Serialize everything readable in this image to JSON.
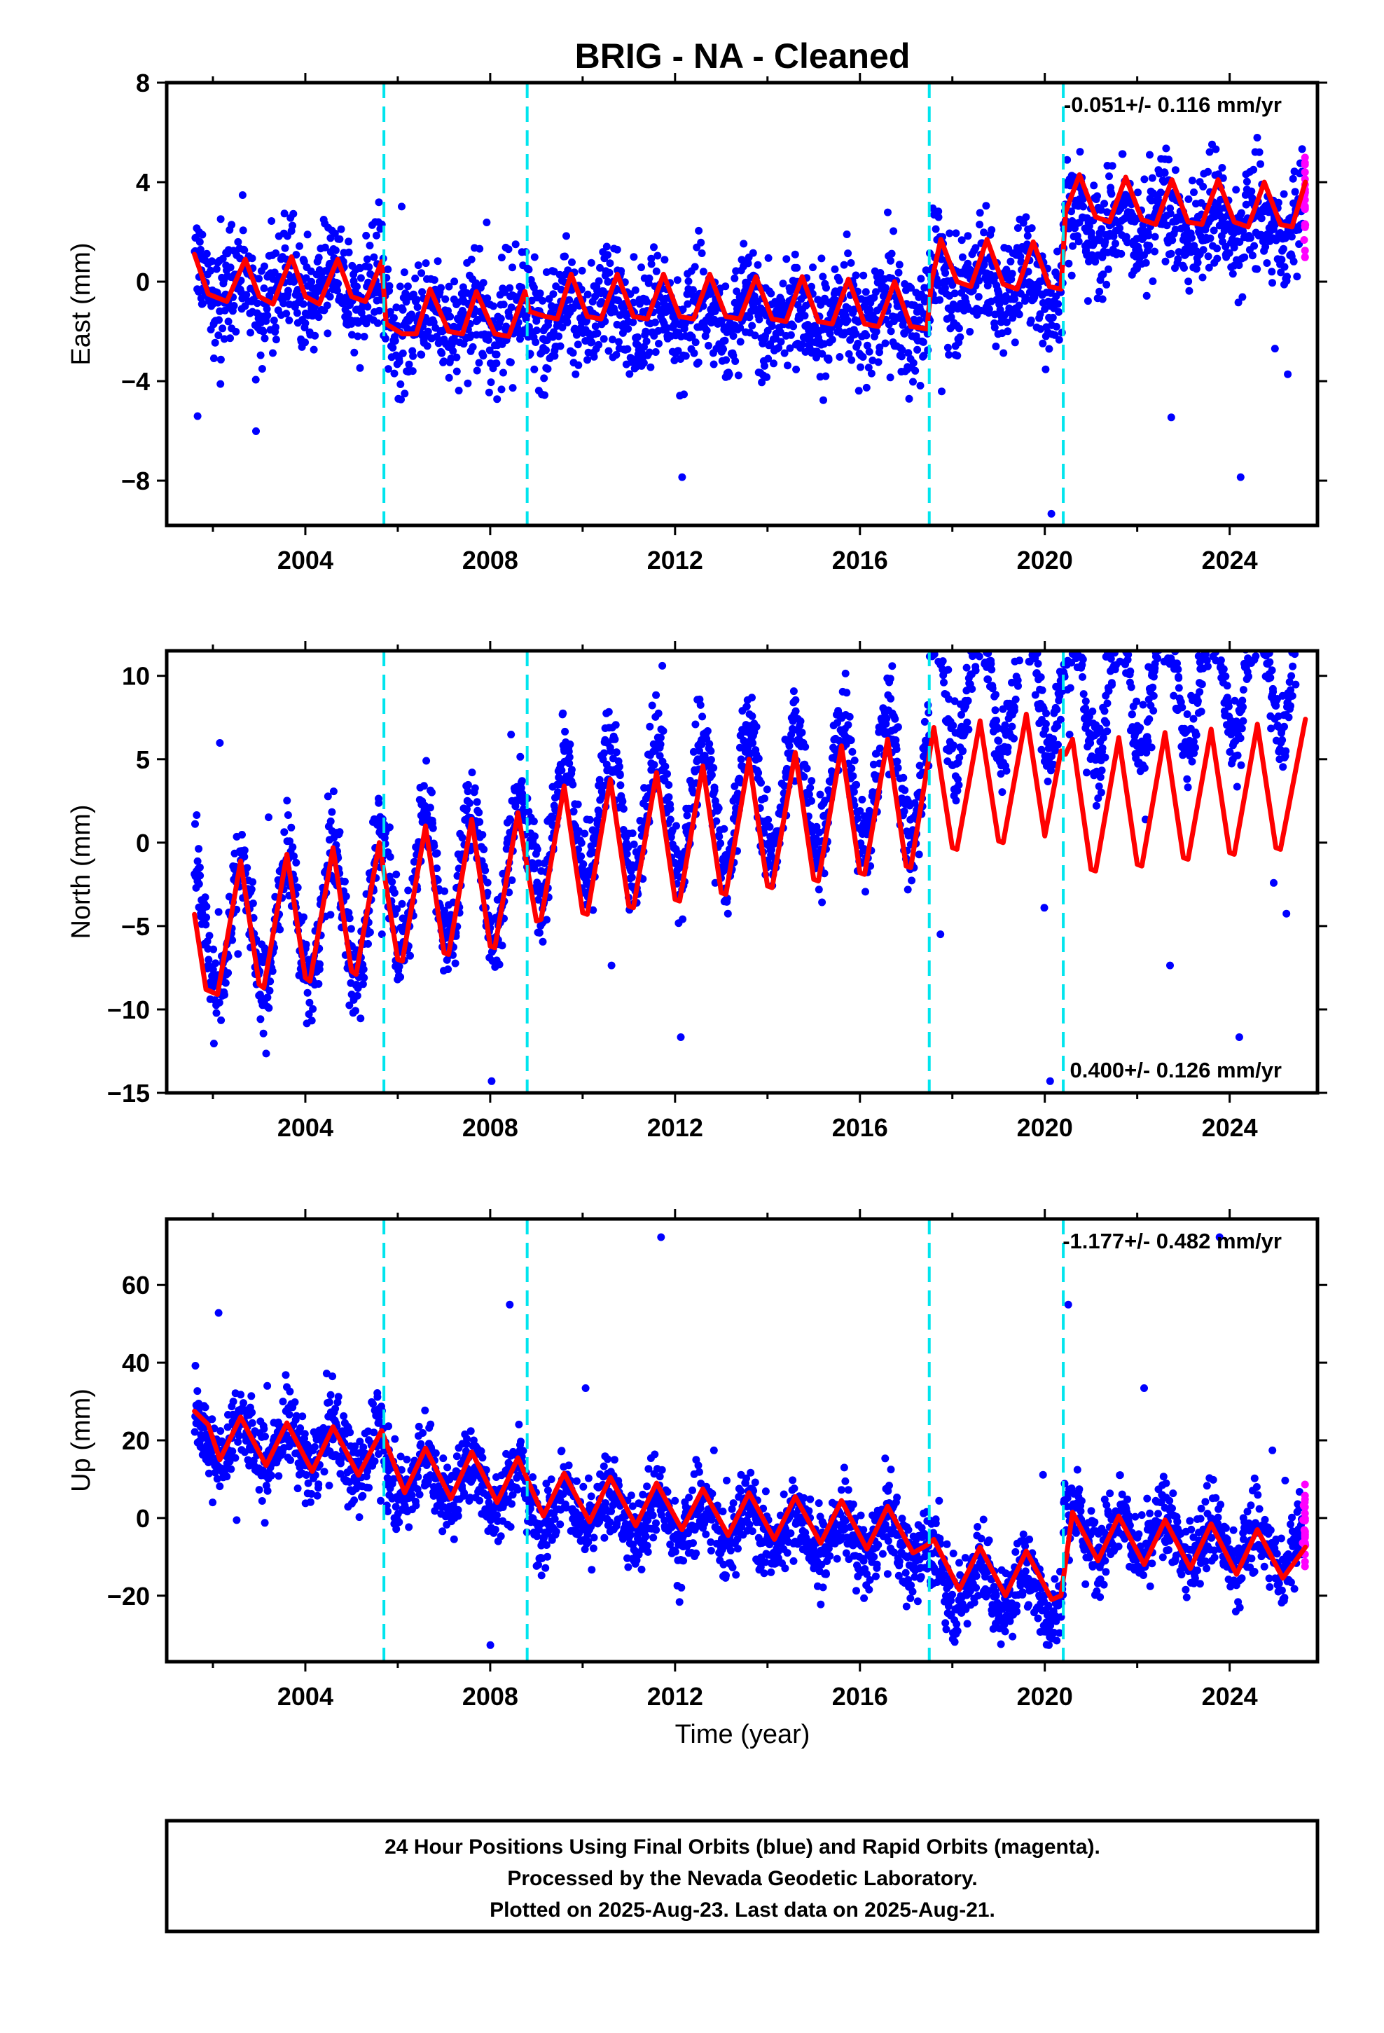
{
  "chart_data": {
    "type": "scatter",
    "title": "BRIG  - NA - Cleaned",
    "xlabel": "Time (year)",
    "xlim": [
      2001.0,
      2025.9
    ],
    "xticks": [
      2004,
      2008,
      2012,
      2016,
      2020,
      2024
    ],
    "x_minor_ticks": [
      2002,
      2006,
      2010,
      2014,
      2018,
      2022
    ],
    "data_start": 2001.6,
    "data_end": 2025.64,
    "rapid_orbits_start": 2025.45,
    "event_lines": [
      2005.7,
      2008.8,
      2017.5,
      2020.4
    ],
    "colors": {
      "final_orbits": "#0000ff",
      "rapid_orbits": "#ff00ff",
      "model": "#ff0000",
      "event_lines": "#00e5ee",
      "frame": "#000000"
    },
    "legend_placement": "none",
    "grid": false,
    "series": [
      {
        "name": "Final Orbits (blue)",
        "color": "#0000ff",
        "marker": "dot"
      },
      {
        "name": "Rapid Orbits (magenta)",
        "color": "#ff00ff",
        "marker": "dot"
      },
      {
        "name": "",
        "color": "#ff0000",
        "marker": "line"
      }
    ],
    "panels": [
      {
        "id": "east",
        "ylabel": "East (mm)",
        "ylim": [
          -9.8,
          8.0
        ],
        "yticks": [
          -8,
          -4,
          0,
          4,
          8
        ],
        "ytick_labels": [
          "−8",
          "−4",
          "0",
          "4",
          "8"
        ],
        "rate_text": "-0.051+/- 0.116 mm/yr",
        "rate_position": "top-right",
        "model": {
          "offsets": [
            {
              "x": 2001.6,
              "y": -0.2
            },
            {
              "x": 2005.7,
              "y": -1.4
            },
            {
              "x": 2008.8,
              "y": -1.0
            },
            {
              "x": 2017.5,
              "y": 0.4
            },
            {
              "x": 2020.4,
              "y": 3.0
            }
          ],
          "trend": -0.03,
          "annual_amp": 0.7,
          "noise_sd": 1.1,
          "outlier_range": [
            -9.5,
            4.8
          ]
        },
        "curve": [
          {
            "x": 2001.6,
            "y": 1.1
          },
          {
            "x": 2001.9,
            "y": -0.5
          },
          {
            "x": 2002.3,
            "y": -0.8
          },
          {
            "x": 2002.7,
            "y": 0.9
          },
          {
            "x": 2003.0,
            "y": -0.6
          },
          {
            "x": 2003.3,
            "y": -0.9
          },
          {
            "x": 2003.7,
            "y": 1.0
          },
          {
            "x": 2004.0,
            "y": -0.6
          },
          {
            "x": 2004.3,
            "y": -0.9
          },
          {
            "x": 2004.7,
            "y": 0.9
          },
          {
            "x": 2005.0,
            "y": -0.6
          },
          {
            "x": 2005.3,
            "y": -0.8
          },
          {
            "x": 2005.65,
            "y": 0.8
          },
          {
            "x": 2005.75,
            "y": -1.7
          },
          {
            "x": 2006.1,
            "y": -2.1
          },
          {
            "x": 2006.4,
            "y": -2.1
          },
          {
            "x": 2006.7,
            "y": -0.3
          },
          {
            "x": 2007.1,
            "y": -2.0
          },
          {
            "x": 2007.4,
            "y": -2.1
          },
          {
            "x": 2007.7,
            "y": -0.4
          },
          {
            "x": 2008.1,
            "y": -2.1
          },
          {
            "x": 2008.4,
            "y": -2.2
          },
          {
            "x": 2008.75,
            "y": -0.4
          },
          {
            "x": 2008.85,
            "y": -1.2
          },
          {
            "x": 2009.2,
            "y": -1.4
          },
          {
            "x": 2009.45,
            "y": -1.5
          },
          {
            "x": 2009.75,
            "y": 0.3
          },
          {
            "x": 2010.1,
            "y": -1.4
          },
          {
            "x": 2010.4,
            "y": -1.5
          },
          {
            "x": 2010.75,
            "y": 0.3
          },
          {
            "x": 2011.1,
            "y": -1.4
          },
          {
            "x": 2011.4,
            "y": -1.5
          },
          {
            "x": 2011.75,
            "y": 0.3
          },
          {
            "x": 2012.1,
            "y": -1.4
          },
          {
            "x": 2012.4,
            "y": -1.5
          },
          {
            "x": 2012.75,
            "y": 0.3
          },
          {
            "x": 2013.1,
            "y": -1.4
          },
          {
            "x": 2013.4,
            "y": -1.5
          },
          {
            "x": 2013.75,
            "y": 0.2
          },
          {
            "x": 2014.1,
            "y": -1.5
          },
          {
            "x": 2014.4,
            "y": -1.6
          },
          {
            "x": 2014.75,
            "y": 0.2
          },
          {
            "x": 2015.1,
            "y": -1.6
          },
          {
            "x": 2015.4,
            "y": -1.7
          },
          {
            "x": 2015.75,
            "y": 0.1
          },
          {
            "x": 2016.1,
            "y": -1.7
          },
          {
            "x": 2016.4,
            "y": -1.8
          },
          {
            "x": 2016.75,
            "y": 0.0
          },
          {
            "x": 2017.1,
            "y": -1.8
          },
          {
            "x": 2017.45,
            "y": -1.9
          },
          {
            "x": 2017.55,
            "y": 0.0
          },
          {
            "x": 2017.75,
            "y": 1.7
          },
          {
            "x": 2018.1,
            "y": 0.0
          },
          {
            "x": 2018.4,
            "y": -0.2
          },
          {
            "x": 2018.75,
            "y": 1.7
          },
          {
            "x": 2019.1,
            "y": -0.1
          },
          {
            "x": 2019.4,
            "y": -0.3
          },
          {
            "x": 2019.75,
            "y": 1.6
          },
          {
            "x": 2020.1,
            "y": -0.2
          },
          {
            "x": 2020.35,
            "y": -0.3
          },
          {
            "x": 2020.45,
            "y": 2.8
          },
          {
            "x": 2020.75,
            "y": 4.3
          },
          {
            "x": 2021.1,
            "y": 2.6
          },
          {
            "x": 2021.4,
            "y": 2.4
          },
          {
            "x": 2021.75,
            "y": 4.2
          },
          {
            "x": 2022.1,
            "y": 2.5
          },
          {
            "x": 2022.4,
            "y": 2.3
          },
          {
            "x": 2022.75,
            "y": 4.1
          },
          {
            "x": 2023.1,
            "y": 2.4
          },
          {
            "x": 2023.4,
            "y": 2.3
          },
          {
            "x": 2023.75,
            "y": 4.1
          },
          {
            "x": 2024.1,
            "y": 2.4
          },
          {
            "x": 2024.4,
            "y": 2.2
          },
          {
            "x": 2024.75,
            "y": 4.0
          },
          {
            "x": 2025.1,
            "y": 2.3
          },
          {
            "x": 2025.35,
            "y": 2.2
          },
          {
            "x": 2025.64,
            "y": 4.0
          }
        ]
      },
      {
        "id": "north",
        "ylabel": "North (mm)",
        "ylim": [
          -15.0,
          11.5
        ],
        "yticks": [
          -15,
          -10,
          -5,
          0,
          5,
          10
        ],
        "ytick_labels": [
          "−15",
          "−10",
          "−5",
          "0",
          "5",
          "10"
        ],
        "rate_text": "0.400+/- 0.126 mm/yr",
        "rate_position": "bottom-right",
        "model": {
          "offsets": [
            {
              "x": 2001.6,
              "y": -5.5
            },
            {
              "x": 2005.7,
              "y": -4.0
            },
            {
              "x": 2008.8,
              "y": -1.5
            },
            {
              "x": 2017.5,
              "y": 3.3
            },
            {
              "x": 2020.4,
              "y": 2.2
            }
          ],
          "trend": 0.35,
          "annual_amp": 4.0,
          "noise_sd": 1.3,
          "outlier_range": [
            -14.6,
            11.0
          ]
        },
        "curve": [
          {
            "x": 2001.6,
            "y": -4.3
          },
          {
            "x": 2001.85,
            "y": -8.8
          },
          {
            "x": 2002.1,
            "y": -9.1
          },
          {
            "x": 2002.6,
            "y": -1.1
          },
          {
            "x": 2003.0,
            "y": -8.5
          },
          {
            "x": 2003.1,
            "y": -8.7
          },
          {
            "x": 2003.6,
            "y": -0.7
          },
          {
            "x": 2004.0,
            "y": -8.1
          },
          {
            "x": 2004.1,
            "y": -8.3
          },
          {
            "x": 2004.6,
            "y": -0.3
          },
          {
            "x": 2005.0,
            "y": -7.7
          },
          {
            "x": 2005.1,
            "y": -7.9
          },
          {
            "x": 2005.6,
            "y": 0.0
          },
          {
            "x": 2006.0,
            "y": -7.0
          },
          {
            "x": 2006.1,
            "y": -7.1
          },
          {
            "x": 2006.6,
            "y": 1.0
          },
          {
            "x": 2007.0,
            "y": -6.6
          },
          {
            "x": 2007.1,
            "y": -6.7
          },
          {
            "x": 2007.6,
            "y": 1.4
          },
          {
            "x": 2008.0,
            "y": -6.2
          },
          {
            "x": 2008.1,
            "y": -6.3
          },
          {
            "x": 2008.6,
            "y": 1.8
          },
          {
            "x": 2009.0,
            "y": -4.7
          },
          {
            "x": 2009.1,
            "y": -4.6
          },
          {
            "x": 2009.6,
            "y": 3.4
          },
          {
            "x": 2010.0,
            "y": -4.2
          },
          {
            "x": 2010.1,
            "y": -4.3
          },
          {
            "x": 2010.6,
            "y": 3.8
          },
          {
            "x": 2011.0,
            "y": -3.8
          },
          {
            "x": 2011.1,
            "y": -3.9
          },
          {
            "x": 2011.6,
            "y": 4.2
          },
          {
            "x": 2012.0,
            "y": -3.4
          },
          {
            "x": 2012.1,
            "y": -3.5
          },
          {
            "x": 2012.6,
            "y": 4.6
          },
          {
            "x": 2013.0,
            "y": -3.0
          },
          {
            "x": 2013.1,
            "y": -3.1
          },
          {
            "x": 2013.6,
            "y": 5.0
          },
          {
            "x": 2014.0,
            "y": -2.6
          },
          {
            "x": 2014.1,
            "y": -2.7
          },
          {
            "x": 2014.6,
            "y": 5.4
          },
          {
            "x": 2015.0,
            "y": -2.2
          },
          {
            "x": 2015.1,
            "y": -2.3
          },
          {
            "x": 2015.6,
            "y": 5.8
          },
          {
            "x": 2016.0,
            "y": -1.8
          },
          {
            "x": 2016.1,
            "y": -1.9
          },
          {
            "x": 2016.6,
            "y": 6.2
          },
          {
            "x": 2017.0,
            "y": -1.4
          },
          {
            "x": 2017.1,
            "y": -1.5
          },
          {
            "x": 2017.6,
            "y": 6.9
          },
          {
            "x": 2018.0,
            "y": -0.3
          },
          {
            "x": 2018.1,
            "y": -0.4
          },
          {
            "x": 2018.6,
            "y": 7.3
          },
          {
            "x": 2019.0,
            "y": 0.1
          },
          {
            "x": 2019.1,
            "y": 0.0
          },
          {
            "x": 2019.6,
            "y": 7.7
          },
          {
            "x": 2020.0,
            "y": 0.4
          },
          {
            "x": 2020.35,
            "y": 5.5
          },
          {
            "x": 2020.45,
            "y": 5.3
          },
          {
            "x": 2020.6,
            "y": 6.2
          },
          {
            "x": 2021.0,
            "y": -1.6
          },
          {
            "x": 2021.1,
            "y": -1.7
          },
          {
            "x": 2021.6,
            "y": 6.3
          },
          {
            "x": 2022.0,
            "y": -1.3
          },
          {
            "x": 2022.1,
            "y": -1.4
          },
          {
            "x": 2022.6,
            "y": 6.6
          },
          {
            "x": 2023.0,
            "y": -0.9
          },
          {
            "x": 2023.1,
            "y": -1.0
          },
          {
            "x": 2023.6,
            "y": 6.8
          },
          {
            "x": 2024.0,
            "y": -0.6
          },
          {
            "x": 2024.1,
            "y": -0.7
          },
          {
            "x": 2024.6,
            "y": 7.1
          },
          {
            "x": 2025.0,
            "y": -0.3
          },
          {
            "x": 2025.1,
            "y": -0.4
          },
          {
            "x": 2025.64,
            "y": 7.4
          }
        ]
      },
      {
        "id": "up",
        "ylabel": "Up (mm)",
        "ylim": [
          -37.0,
          77.0
        ],
        "yticks": [
          -20,
          0,
          20,
          40,
          60
        ],
        "ytick_labels": [
          "−20",
          "0",
          "20",
          "40",
          "60"
        ],
        "rate_text": "-1.177+/- 0.482 mm/yr",
        "rate_position": "top-right",
        "model": {
          "offsets": [
            {
              "x": 2001.6,
              "y": 21.0
            },
            {
              "x": 2005.7,
              "y": 16.0
            },
            {
              "x": 2008.8,
              "y": 12.0
            },
            {
              "x": 2017.5,
              "y": 3.0
            },
            {
              "x": 2020.4,
              "y": 20.0
            }
          ],
          "trend": -1.2,
          "annual_amp": 5.5,
          "noise_sd": 5.0,
          "outlier_range": [
            -34.0,
            74.0
          ]
        },
        "curve": [
          {
            "x": 2001.6,
            "y": 27.5
          },
          {
            "x": 2001.9,
            "y": 24.0
          },
          {
            "x": 2002.15,
            "y": 15.0
          },
          {
            "x": 2002.6,
            "y": 26.0
          },
          {
            "x": 2003.15,
            "y": 13.5
          },
          {
            "x": 2003.6,
            "y": 24.5
          },
          {
            "x": 2004.15,
            "y": 12.0
          },
          {
            "x": 2004.6,
            "y": 23.5
          },
          {
            "x": 2005.15,
            "y": 11.0
          },
          {
            "x": 2005.65,
            "y": 22.5
          },
          {
            "x": 2006.15,
            "y": 6.5
          },
          {
            "x": 2006.6,
            "y": 18.0
          },
          {
            "x": 2007.15,
            "y": 5.0
          },
          {
            "x": 2007.6,
            "y": 17.0
          },
          {
            "x": 2008.15,
            "y": 4.0
          },
          {
            "x": 2008.6,
            "y": 15.5
          },
          {
            "x": 2009.15,
            "y": 0.5
          },
          {
            "x": 2009.6,
            "y": 11.5
          },
          {
            "x": 2010.15,
            "y": -1.0
          },
          {
            "x": 2010.6,
            "y": 10.5
          },
          {
            "x": 2011.15,
            "y": -2.0
          },
          {
            "x": 2011.6,
            "y": 9.0
          },
          {
            "x": 2012.15,
            "y": -3.0
          },
          {
            "x": 2012.6,
            "y": 7.5
          },
          {
            "x": 2013.15,
            "y": -4.5
          },
          {
            "x": 2013.6,
            "y": 6.5
          },
          {
            "x": 2014.15,
            "y": -5.5
          },
          {
            "x": 2014.6,
            "y": 5.5
          },
          {
            "x": 2015.15,
            "y": -6.5
          },
          {
            "x": 2015.6,
            "y": 4.5
          },
          {
            "x": 2016.15,
            "y": -8.0
          },
          {
            "x": 2016.6,
            "y": 3.0
          },
          {
            "x": 2017.15,
            "y": -9.0
          },
          {
            "x": 2017.45,
            "y": -7.0
          },
          {
            "x": 2017.6,
            "y": -5.5
          },
          {
            "x": 2018.15,
            "y": -18.5
          },
          {
            "x": 2018.6,
            "y": -7.5
          },
          {
            "x": 2019.15,
            "y": -20.0
          },
          {
            "x": 2019.6,
            "y": -8.5
          },
          {
            "x": 2020.15,
            "y": -21.0
          },
          {
            "x": 2020.35,
            "y": -20.0
          },
          {
            "x": 2020.6,
            "y": 1.5
          },
          {
            "x": 2021.15,
            "y": -11.0
          },
          {
            "x": 2021.6,
            "y": 0.5
          },
          {
            "x": 2022.15,
            "y": -12.0
          },
          {
            "x": 2022.6,
            "y": -0.5
          },
          {
            "x": 2023.15,
            "y": -13.0
          },
          {
            "x": 2023.6,
            "y": -1.5
          },
          {
            "x": 2024.15,
            "y": -14.5
          },
          {
            "x": 2024.6,
            "y": -3.0
          },
          {
            "x": 2025.15,
            "y": -15.5
          },
          {
            "x": 2025.64,
            "y": -7.5
          }
        ]
      }
    ],
    "footer_lines": [
      "24 Hour Positions Using Final Orbits (blue) and Rapid Orbits (magenta).",
      "Processed by the Nevada Geodetic Laboratory.",
      "Plotted on 2025-Aug-23. Last data on 2025-Aug-21."
    ]
  }
}
